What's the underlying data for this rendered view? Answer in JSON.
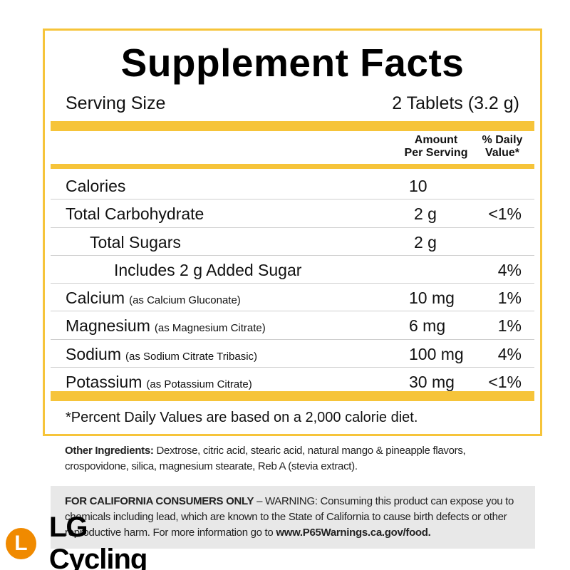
{
  "title": "Supplement Facts",
  "serving": {
    "label": "Serving Size",
    "value": "2 Tablets (3.2 g)"
  },
  "columns": {
    "amount_line1": "Amount",
    "amount_line2": "Per Serving",
    "dv_line1": "% Daily",
    "dv_line2": "Value*"
  },
  "rows": [
    {
      "name": "Calories",
      "sub": "",
      "amount": "10",
      "dv": ""
    },
    {
      "name": "Total Carbohydrate",
      "sub": "",
      "amount": "2 g",
      "dv": "<1%"
    },
    {
      "name": "Total Sugars",
      "sub": "",
      "amount": "2 g",
      "dv": ""
    },
    {
      "name": "Includes 2 g Added Sugar",
      "sub": "",
      "amount": "",
      "dv": "4%"
    },
    {
      "name": "Calcium",
      "sub": "(as Calcium Gluconate)",
      "amount": "10 mg",
      "dv": "1%"
    },
    {
      "name": "Magnesium",
      "sub": "(as Magnesium Citrate)",
      "amount": "6 mg",
      "dv": "1%"
    },
    {
      "name": "Sodium",
      "sub": "(as Sodium Citrate Tribasic)",
      "amount": "100 mg",
      "dv": "4%"
    },
    {
      "name": "Potassium",
      "sub": "(as Potassium Citrate)",
      "amount": "30 mg",
      "dv": "<1%"
    }
  ],
  "footnote": "*Percent Daily Values are based on a 2,000 calorie diet.",
  "ingredients": {
    "label": "Other Ingredients:",
    "text": "Dextrose, citric acid, stearic acid, natural mango & pineapple flavors, crospovidone, silica, magnesium stearate, Reb A (stevia extract)."
  },
  "warning": {
    "label": "FOR CALIFORNIA CONSUMERS ONLY",
    "text": "– WARNING: Consuming this product can expose you to chemicals including lead, which are known to the State of California to cause birth defects or other reproductive harm. For more information go to",
    "link": "www.P65Warnings.ca.gov/food."
  },
  "logo": {
    "mark": "L",
    "text": "LG Cycling"
  },
  "colors": {
    "accent": "#f6c43a",
    "logo": "#f08a00",
    "warning_bg": "#e8e8e8"
  }
}
